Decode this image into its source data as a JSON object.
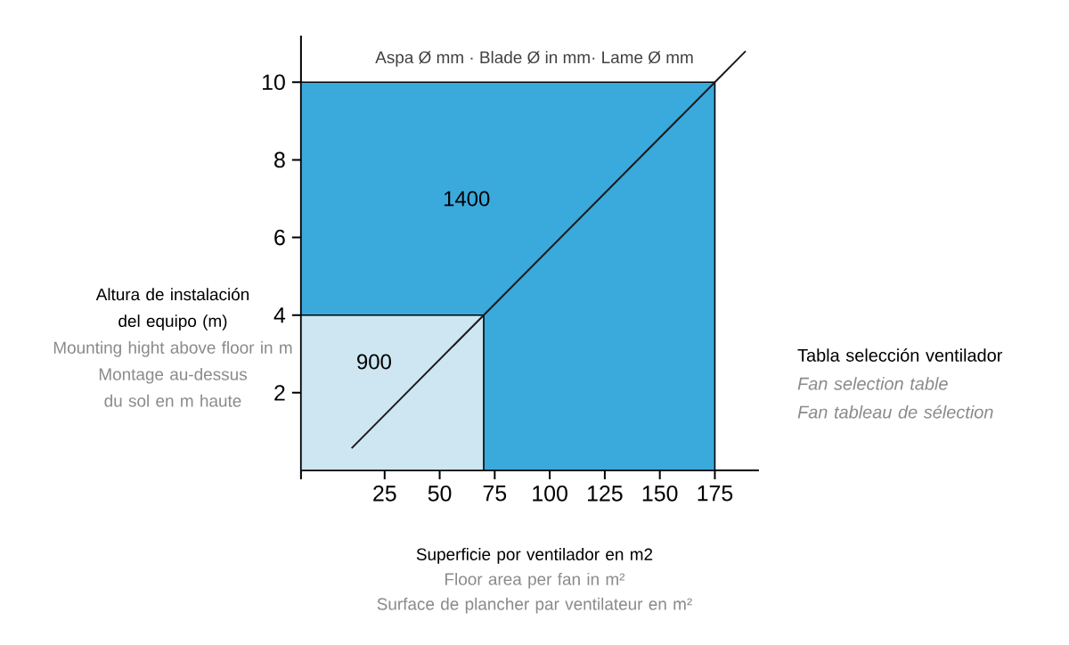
{
  "chart_data": {
    "type": "area",
    "title": "Tabla selección ventilador",
    "legend_title": "Aspa Ø mm · Blade Ø in mm· Lame Ø mm",
    "xlabel": "Superficie por ventilador en m2",
    "ylabel": "Altura de instalación del equipo (m)",
    "annotations": [
      "Mounting hight above floor in m",
      "Montage au-dessus du sol en m haute",
      "Floor area per fan in m²",
      "Surface de plancher par ventilateur en m²",
      "Fan selection table",
      "Fan tableau de sélection"
    ],
    "xlim": [
      -13,
      195
    ],
    "ylim": [
      0,
      11.2
    ],
    "xticks": [
      {
        "value": -13,
        "label": null
      },
      25,
      50,
      75,
      100,
      125,
      150,
      175
    ],
    "yticks": [
      2,
      4,
      6,
      8,
      10
    ],
    "series": [
      {
        "name": "1400",
        "color": "#3aa9dc",
        "x": [
          -13,
          175
        ],
        "values": [
          10,
          10
        ]
      },
      {
        "name": "900",
        "color": "#cde6f2",
        "x": [
          -13,
          70
        ],
        "values": [
          4,
          4
        ]
      },
      {
        "type": "line",
        "color": "#1a1a1a",
        "x": [
          10,
          70,
          175,
          189
        ],
        "values": [
          0.57,
          4,
          10,
          10.8
        ]
      }
    ]
  }
}
